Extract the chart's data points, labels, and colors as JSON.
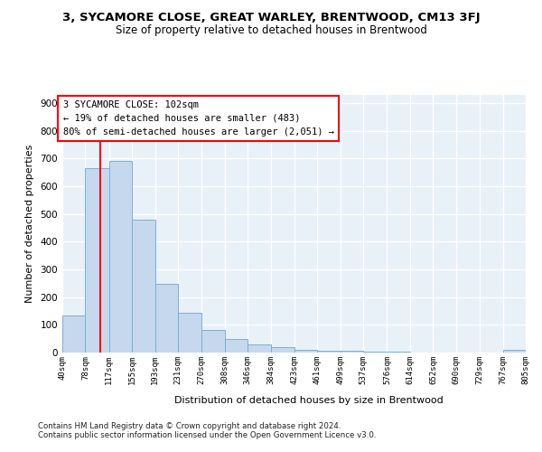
{
  "title1": "3, SYCAMORE CLOSE, GREAT WARLEY, BRENTWOOD, CM13 3FJ",
  "title2": "Size of property relative to detached houses in Brentwood",
  "xlabel": "Distribution of detached houses by size in Brentwood",
  "ylabel": "Number of detached properties",
  "bar_color": "#c5d8ed",
  "bar_edge_color": "#7bafd4",
  "bg_color": "#e8f0f8",
  "grid_color": "#ffffff",
  "red_line_x": 102,
  "annotation_line1": "3 SYCAMORE CLOSE: 102sqm",
  "annotation_line2": "← 19% of detached houses are smaller (483)",
  "annotation_line3": "80% of semi-detached houses are larger (2,051) →",
  "bin_edges": [
    40,
    78,
    117,
    155,
    193,
    231,
    270,
    308,
    346,
    384,
    423,
    461,
    499,
    537,
    576,
    614,
    652,
    690,
    729,
    767,
    805
  ],
  "bar_heights": [
    135,
    665,
    693,
    480,
    248,
    145,
    83,
    50,
    30,
    18,
    10,
    5,
    5,
    2,
    2,
    0,
    0,
    0,
    0,
    10
  ],
  "ylim": [
    0,
    930
  ],
  "yticks": [
    0,
    100,
    200,
    300,
    400,
    500,
    600,
    700,
    800,
    900
  ],
  "bin_labels": [
    "40sqm",
    "78sqm",
    "117sqm",
    "155sqm",
    "193sqm",
    "231sqm",
    "270sqm",
    "308sqm",
    "346sqm",
    "384sqm",
    "423sqm",
    "461sqm",
    "499sqm",
    "537sqm",
    "576sqm",
    "614sqm",
    "652sqm",
    "690sqm",
    "729sqm",
    "767sqm",
    "805sqm"
  ],
  "footnote1": "Contains HM Land Registry data © Crown copyright and database right 2024.",
  "footnote2": "Contains public sector information licensed under the Open Government Licence v3.0."
}
